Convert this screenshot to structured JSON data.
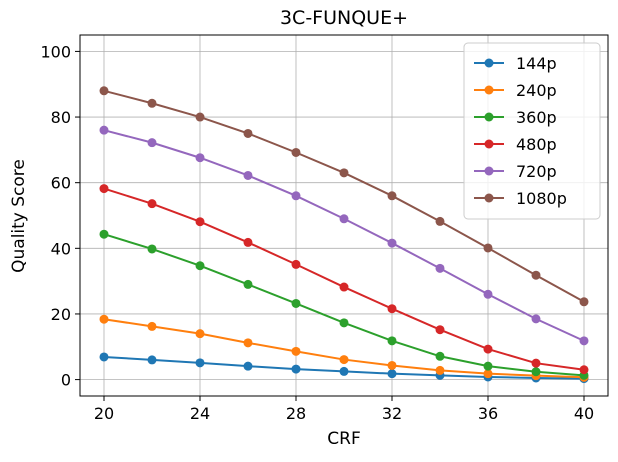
{
  "chart_data": {
    "type": "line",
    "title": "3C-FUNQUE+",
    "x_label": "CRF",
    "y_label": "Quality Score",
    "x": [
      20,
      22,
      24,
      26,
      28,
      30,
      32,
      34,
      36,
      38,
      40
    ],
    "xlim": [
      19,
      41
    ],
    "xticks": [
      20,
      24,
      28,
      32,
      36,
      40
    ],
    "ylim": [
      -5,
      105
    ],
    "yticks": [
      0,
      20,
      40,
      60,
      80,
      100
    ],
    "grid": true,
    "legend": "upper right",
    "series": [
      {
        "name": "144p",
        "color": "#1f77b4",
        "values": [
          6.9,
          6,
          5.1,
          4.1,
          3.2,
          2.5,
          1.8,
          1.3,
          0.8,
          0.5,
          0.3
        ]
      },
      {
        "name": "240p",
        "color": "#ff7f0e",
        "values": [
          18.4,
          16.2,
          14,
          11.2,
          8.6,
          6.1,
          4.3,
          2.8,
          1.8,
          1.2,
          0.7
        ]
      },
      {
        "name": "360p",
        "color": "#2ca02c",
        "values": [
          44.3,
          39.8,
          34.7,
          29,
          23.2,
          17.3,
          11.8,
          7.1,
          4.1,
          2.4,
          1.3
        ]
      },
      {
        "name": "480p",
        "color": "#d62728",
        "values": [
          58.2,
          53.6,
          48.1,
          41.8,
          35.1,
          28.2,
          21.6,
          15.2,
          9.3,
          5,
          3
        ]
      },
      {
        "name": "720p",
        "color": "#9467bd",
        "values": [
          76,
          72.2,
          67.6,
          62.2,
          56,
          49,
          41.6,
          33.9,
          26,
          18.5,
          11.8
        ]
      },
      {
        "name": "1080p",
        "color": "#8c564b",
        "values": [
          88,
          84.2,
          80,
          75,
          69.2,
          63,
          56,
          48.2,
          40.1,
          31.8,
          23.7
        ]
      }
    ]
  }
}
